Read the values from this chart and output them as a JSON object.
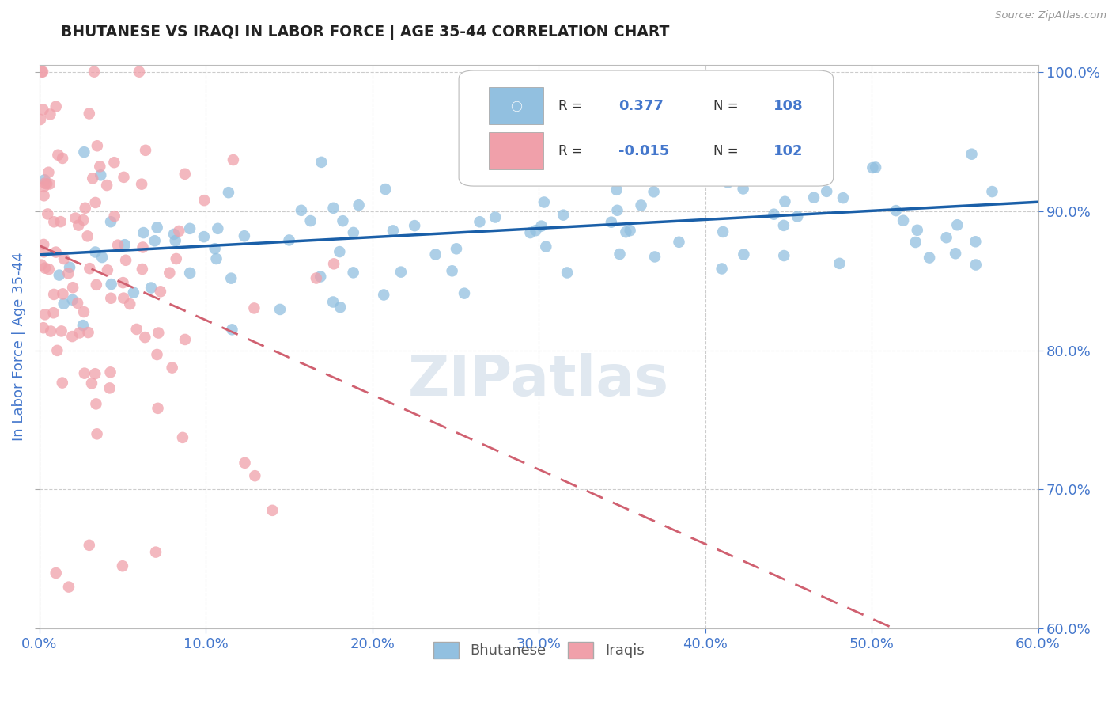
{
  "title": "BHUTANESE VS IRAQI IN LABOR FORCE | AGE 35-44 CORRELATION CHART",
  "source": "Source: ZipAtlas.com",
  "ylabel": "In Labor Force | Age 35-44",
  "xlim": [
    0.0,
    0.6
  ],
  "ylim": [
    0.6,
    1.005
  ],
  "xticks": [
    0.0,
    0.1,
    0.2,
    0.3,
    0.4,
    0.5,
    0.6
  ],
  "yticks": [
    0.6,
    0.7,
    0.8,
    0.9,
    1.0
  ],
  "blue_R": 0.377,
  "blue_N": 108,
  "pink_R": -0.015,
  "pink_N": 102,
  "blue_color": "#92c0e0",
  "pink_color": "#f0a0aa",
  "blue_line_color": "#1a5fa8",
  "pink_line_color": "#d06070",
  "legend_label_blue": "Bhutanese",
  "legend_label_pink": "Iraqis",
  "title_color": "#222222",
  "tick_color": "#4477cc",
  "grid_color": "#cccccc",
  "background_color": "#ffffff",
  "watermark": "ZIPatlas"
}
